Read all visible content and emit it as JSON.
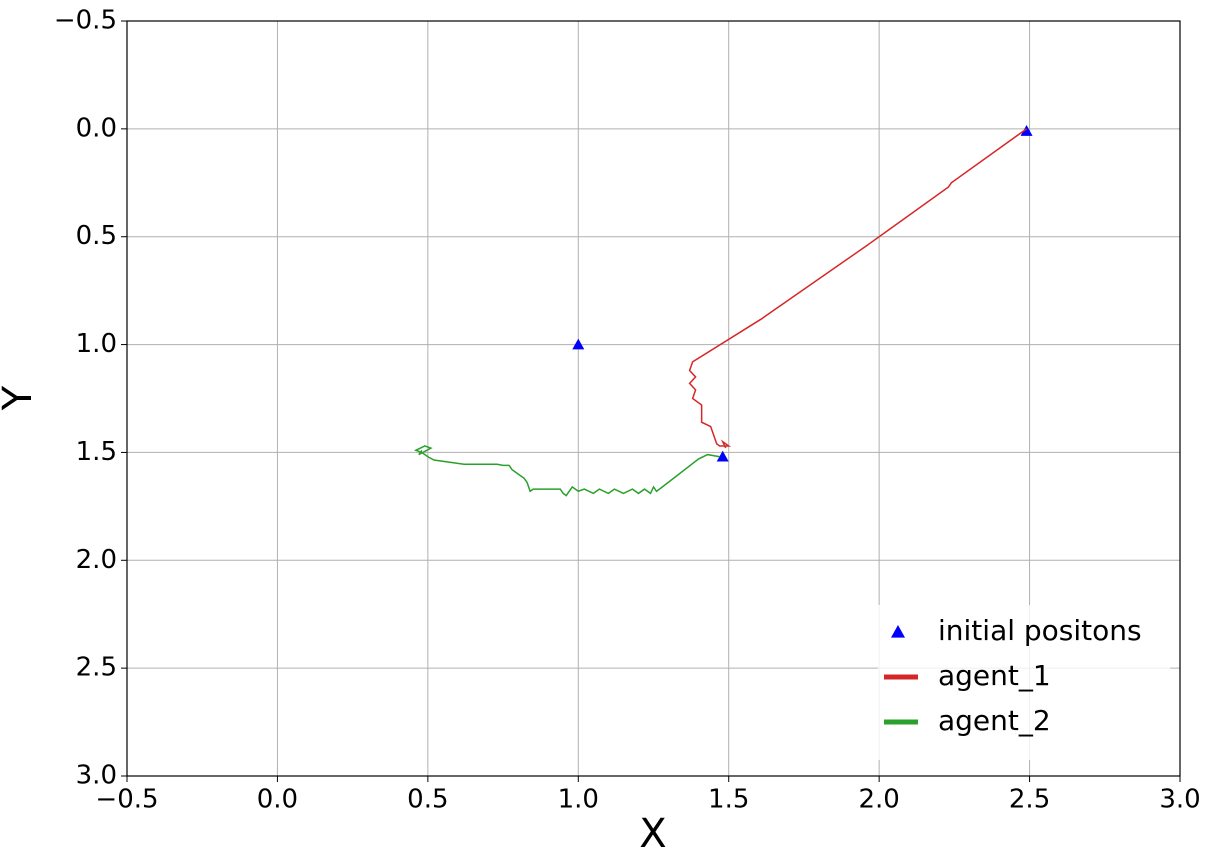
{
  "chart_data": {
    "type": "line",
    "xlabel": "X",
    "ylabel": "Y",
    "xlim": [
      -0.5,
      3.0
    ],
    "ylim": [
      3.0,
      -0.5
    ],
    "xticks": [
      {
        "value": -0.5,
        "label": "−0.5"
      },
      {
        "value": 0,
        "label": "0.0"
      },
      0.5,
      {
        "value": 1,
        "label": "1.0"
      },
      1.5,
      {
        "value": 2,
        "label": "2.0"
      },
      2.5,
      {
        "value": 3,
        "label": "3.0"
      }
    ],
    "yticks": [
      {
        "value": -0.5,
        "label": "−0.5"
      },
      {
        "value": 0,
        "label": "0.0"
      },
      0.5,
      {
        "value": 1,
        "label": "1.0"
      },
      1.5,
      {
        "value": 2,
        "label": "2.0"
      },
      2.5,
      {
        "value": 3,
        "label": "3.0"
      }
    ],
    "grid": true,
    "legend": "lower right",
    "series": [
      {
        "name": "initial positons",
        "color": "#0000ff",
        "marker": "triangle",
        "x": [
          1.0,
          1.48,
          2.49
        ],
        "values": [
          1.0,
          1.52,
          0.01
        ]
      },
      {
        "name": "agent_1",
        "color": "#d62728",
        "x": [
          2.49,
          2.24,
          2.23,
          1.97,
          1.96,
          1.62,
          1.61,
          1.38,
          1.37,
          1.39,
          1.37,
          1.39,
          1.38,
          1.41,
          1.41,
          1.44,
          1.45,
          1.46,
          1.47,
          1.5,
          1.48,
          1.49
        ],
        "values": [
          0.0,
          0.25,
          0.27,
          0.53,
          0.54,
          0.87,
          0.88,
          1.08,
          1.12,
          1.15,
          1.18,
          1.21,
          1.25,
          1.28,
          1.36,
          1.38,
          1.42,
          1.46,
          1.47,
          1.47,
          1.45,
          1.48
        ]
      },
      {
        "name": "agent_2",
        "color": "#2ca02c",
        "x": [
          1.47,
          1.43,
          1.4,
          1.27,
          1.26,
          1.25,
          1.24,
          1.22,
          1.2,
          1.18,
          1.15,
          1.12,
          1.1,
          1.07,
          1.05,
          1.02,
          1.0,
          0.98,
          0.96,
          0.95,
          0.94,
          0.85,
          0.84,
          0.83,
          0.82,
          0.8,
          0.78,
          0.77,
          0.75,
          0.73,
          0.62,
          0.52,
          0.5,
          0.48,
          0.46,
          0.49,
          0.51,
          0.47,
          0.48
        ],
        "values": [
          1.52,
          1.51,
          1.53,
          1.67,
          1.68,
          1.66,
          1.69,
          1.67,
          1.69,
          1.67,
          1.69,
          1.67,
          1.69,
          1.67,
          1.69,
          1.67,
          1.68,
          1.66,
          1.7,
          1.69,
          1.67,
          1.67,
          1.68,
          1.64,
          1.62,
          1.6,
          1.58,
          1.56,
          1.56,
          1.555,
          1.555,
          1.535,
          1.52,
          1.5,
          1.49,
          1.47,
          1.48,
          1.51,
          1.49
        ]
      }
    ]
  }
}
